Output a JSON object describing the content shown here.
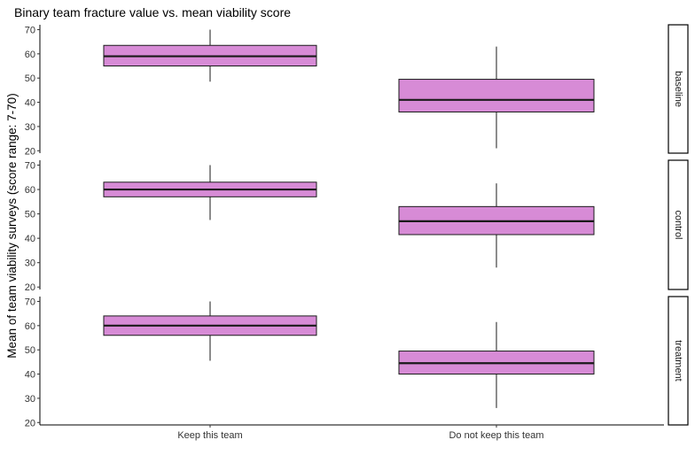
{
  "chart_data": {
    "type": "boxplot",
    "title": "Binary team fracture value vs. mean viability score",
    "xlabel": "",
    "ylabel": "Mean of team viability surveys (score range: 7-70)",
    "categories": [
      "Keep this team",
      "Do not keep this team"
    ],
    "yticks": [
      20,
      30,
      40,
      50,
      60,
      70
    ],
    "ylim": [
      19,
      72
    ],
    "fill_color": "#d78bd6",
    "facets": [
      {
        "label": "baseline",
        "boxes": [
          {
            "category": "Keep this team",
            "min": 48.5,
            "q1": 55,
            "median": 59,
            "q3": 63.5,
            "max": 70
          },
          {
            "category": "Do not keep this team",
            "min": 21,
            "q1": 36,
            "median": 41,
            "q3": 49.5,
            "max": 63
          }
        ]
      },
      {
        "label": "control",
        "boxes": [
          {
            "category": "Keep this team",
            "min": 47.5,
            "q1": 57,
            "median": 60,
            "q3": 63,
            "max": 70
          },
          {
            "category": "Do not keep this team",
            "min": 28,
            "q1": 41.5,
            "median": 47,
            "q3": 53,
            "max": 62.5
          }
        ]
      },
      {
        "label": "treatment",
        "boxes": [
          {
            "category": "Keep this team",
            "min": 45.5,
            "q1": 56,
            "median": 60,
            "q3": 64,
            "max": 70
          },
          {
            "category": "Do not keep this team",
            "min": 26,
            "q1": 40,
            "median": 44.5,
            "q3": 49.5,
            "max": 61.5
          }
        ]
      }
    ]
  }
}
